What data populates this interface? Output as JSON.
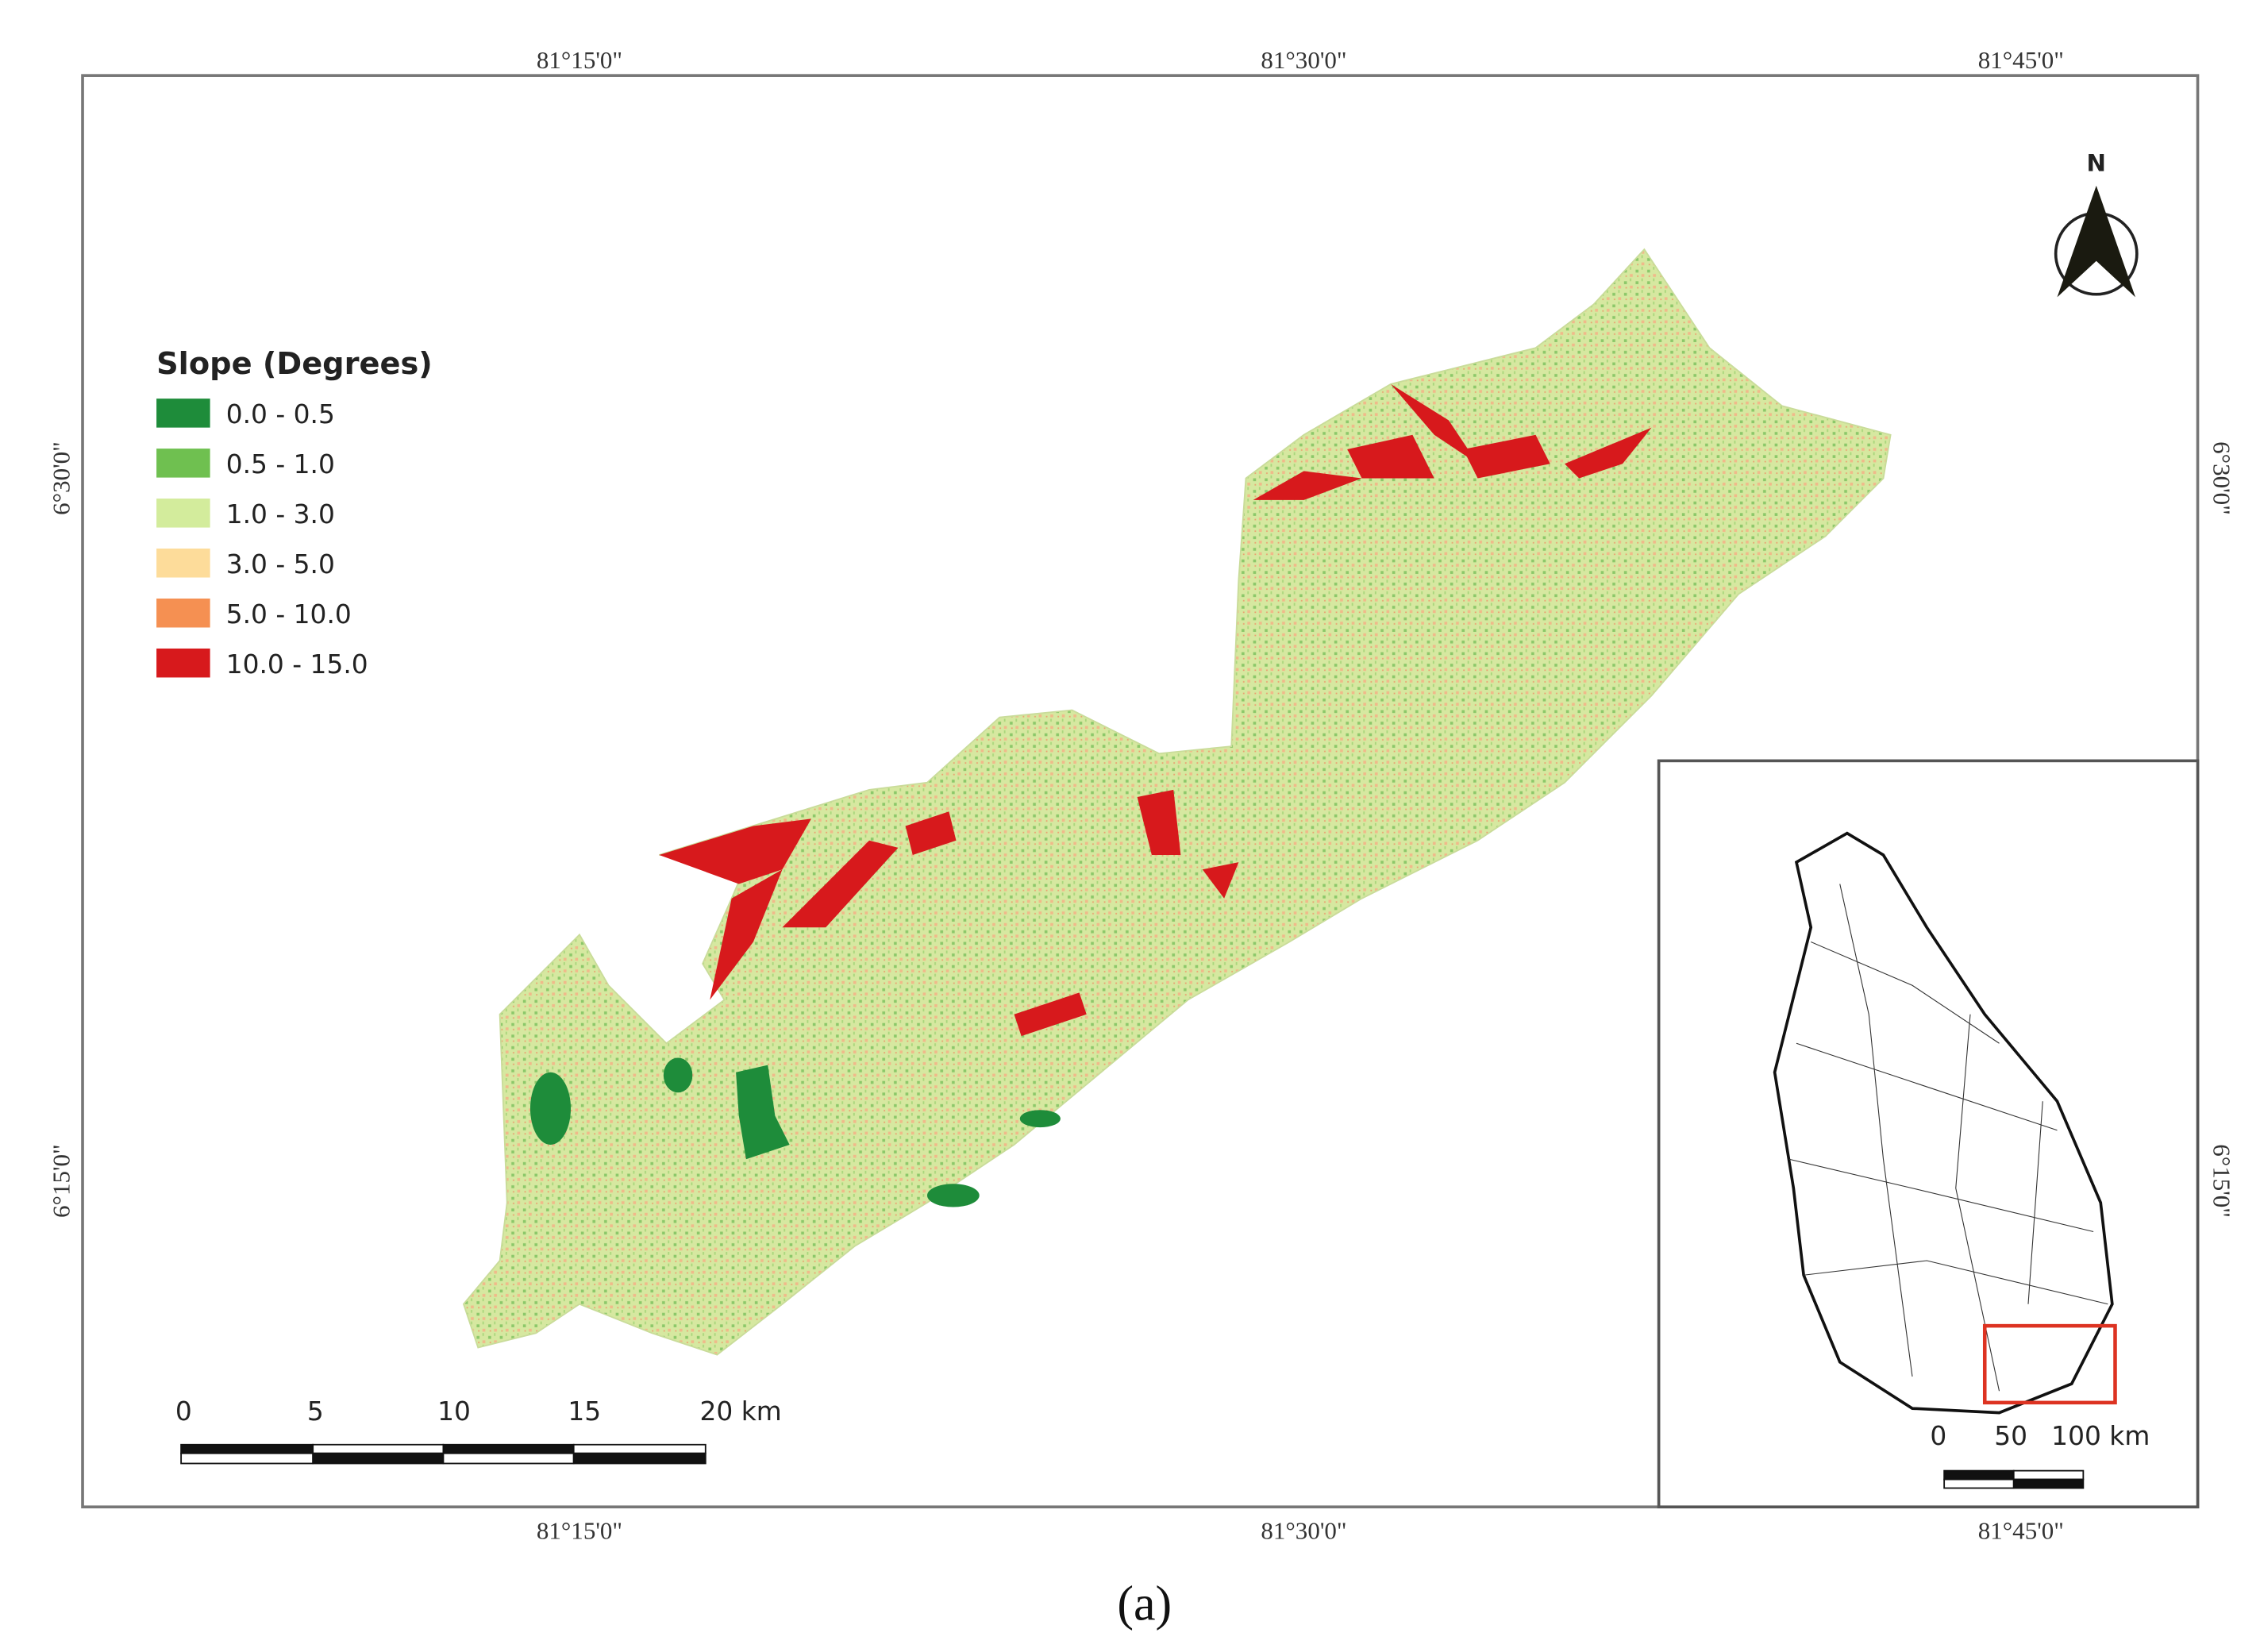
{
  "map": {
    "top_labels": [
      "81°15'0\"",
      "81°30'0\"",
      "81°45'0\""
    ],
    "bottom_labels": [
      "81°15'0\"",
      "81°30'0\"",
      "81°45'0\""
    ],
    "left_labels": [
      "6°30'0\"",
      "6°15'0\""
    ],
    "right_labels": [
      "6°30'0\"",
      "6°15'0\""
    ],
    "north": "N",
    "legend": {
      "title": "Slope (Degrees)",
      "items": [
        {
          "label": "0.0 - 0.5",
          "color": "#1e8c3a"
        },
        {
          "label": "0.5 - 1.0",
          "color": "#6fc050"
        },
        {
          "label": "1.0 - 3.0",
          "color": "#d3ec9c"
        },
        {
          "label": "3.0 - 5.0",
          "color": "#fddc9a"
        },
        {
          "label": "5.0 - 10.0",
          "color": "#f59052"
        },
        {
          "label": "10.0 - 15.0",
          "color": "#d7191c"
        }
      ]
    },
    "scale_bar": {
      "labels": [
        "0",
        "5",
        "10",
        "15",
        "20 km"
      ]
    },
    "inset_scale_bar": {
      "labels": [
        "0",
        "50",
        "100 km"
      ]
    }
  },
  "caption": "(a)"
}
